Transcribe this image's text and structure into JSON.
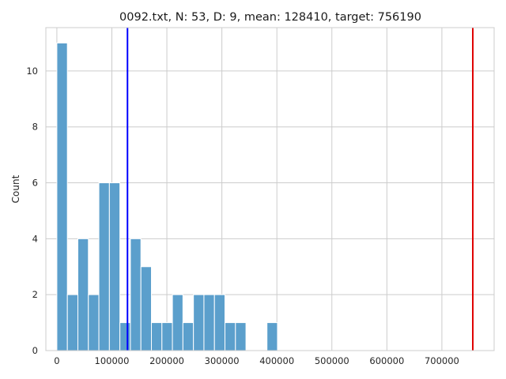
{
  "chart_data": {
    "type": "bar",
    "title": "0092.txt, N: 53, D: 9, mean: 128410, target: 756190",
    "xlabel": "",
    "ylabel": "Count",
    "xlim": [
      -20000,
      795000
    ],
    "ylim": [
      0,
      11.55
    ],
    "xticks": [
      0,
      100000,
      200000,
      300000,
      400000,
      500000,
      600000,
      700000
    ],
    "yticks": [
      0,
      2,
      4,
      6,
      8,
      10
    ],
    "grid": true,
    "bin_width": 19100,
    "bins": [
      {
        "x0": 0,
        "count": 11
      },
      {
        "x0": 19100,
        "count": 2
      },
      {
        "x0": 38200,
        "count": 4
      },
      {
        "x0": 57300,
        "count": 2
      },
      {
        "x0": 76400,
        "count": 6
      },
      {
        "x0": 95500,
        "count": 6
      },
      {
        "x0": 114600,
        "count": 1
      },
      {
        "x0": 133700,
        "count": 4
      },
      {
        "x0": 152800,
        "count": 3
      },
      {
        "x0": 171900,
        "count": 1
      },
      {
        "x0": 191000,
        "count": 1
      },
      {
        "x0": 210100,
        "count": 2
      },
      {
        "x0": 229200,
        "count": 1
      },
      {
        "x0": 248300,
        "count": 2
      },
      {
        "x0": 267400,
        "count": 2
      },
      {
        "x0": 286500,
        "count": 2
      },
      {
        "x0": 305600,
        "count": 1
      },
      {
        "x0": 324700,
        "count": 1
      },
      {
        "x0": 382000,
        "count": 1
      }
    ],
    "vlines": [
      {
        "label": "mean",
        "x": 128410,
        "color": "#0000ff"
      },
      {
        "label": "target",
        "x": 756190,
        "color": "#e00000"
      }
    ]
  }
}
